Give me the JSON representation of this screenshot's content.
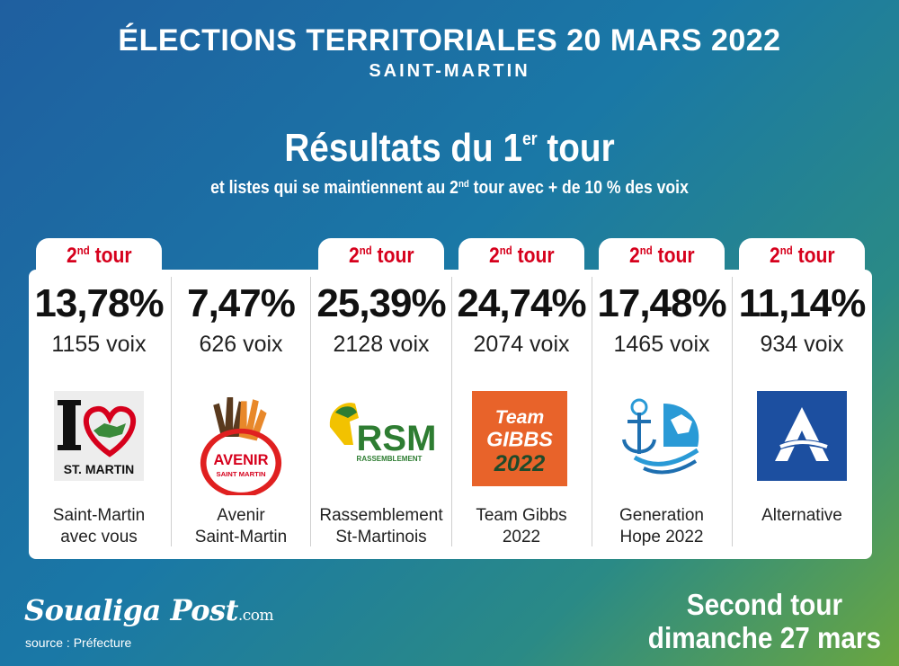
{
  "header": {
    "title": "ÉLECTIONS TERRITORIALES 20 MARS 2022",
    "subtitle": "SAINT-MARTIN"
  },
  "results": {
    "title_main": "Résultats du 1",
    "title_sup": "er",
    "title_end": " tour",
    "sub_pre": "et listes qui se maintiennent au 2",
    "sub_sup": "nd",
    "sub_post": " tour avec + de 10 % des voix"
  },
  "tab_label": {
    "pre": "2",
    "sup": "nd",
    "post": " tour"
  },
  "lists": [
    {
      "pct": "13,78%",
      "votes": "1155 voix",
      "name_line1": "Saint-Martin",
      "name_line2": "avec vous",
      "second_tour": true,
      "logo": "i-love-st-martin-logo",
      "logo_text": "ST. MARTIN"
    },
    {
      "pct": "7,47%",
      "votes": "626 voix",
      "name_line1": "Avenir",
      "name_line2": "Saint-Martin",
      "second_tour": false,
      "logo": "avenir-saint-martin-logo",
      "logo_text": "AVENIR",
      "logo_text2": "SAINT MARTIN"
    },
    {
      "pct": "25,39%",
      "votes": "2128 voix",
      "name_line1": "Rassemblement",
      "name_line2": "St-Martinois",
      "second_tour": true,
      "logo": "rsm-logo",
      "logo_text": "RSM",
      "logo_text2": "RASSEMBLEMENT"
    },
    {
      "pct": "24,74%",
      "votes": "2074 voix",
      "name_line1": "Team Gibbs",
      "name_line2": "2022",
      "second_tour": true,
      "logo": "team-gibbs-logo",
      "logo_text": "Team",
      "logo_text2": "GIBBS",
      "logo_text3": "2022"
    },
    {
      "pct": "17,48%",
      "votes": "1465 voix",
      "name_line1": "Generation",
      "name_line2": "Hope 2022",
      "second_tour": true,
      "logo": "generation-hope-logo"
    },
    {
      "pct": "11,14%",
      "votes": "934 voix",
      "name_line1": "Alternative",
      "name_line2": "",
      "second_tour": true,
      "logo": "alternative-logo"
    }
  ],
  "footer": {
    "brand": "Soualiga Post",
    "brand_suffix": ".com",
    "source": "source : Préfecture",
    "second_line1": "Second tour",
    "second_line2": "dimanche 27 mars"
  },
  "colors": {
    "accent_red": "#d6001c",
    "gibbs_orange": "#e8632a",
    "alternative_blue": "#1c4fa0",
    "rsm_green": "#2e7d32",
    "rsm_yellow": "#f2c200"
  }
}
